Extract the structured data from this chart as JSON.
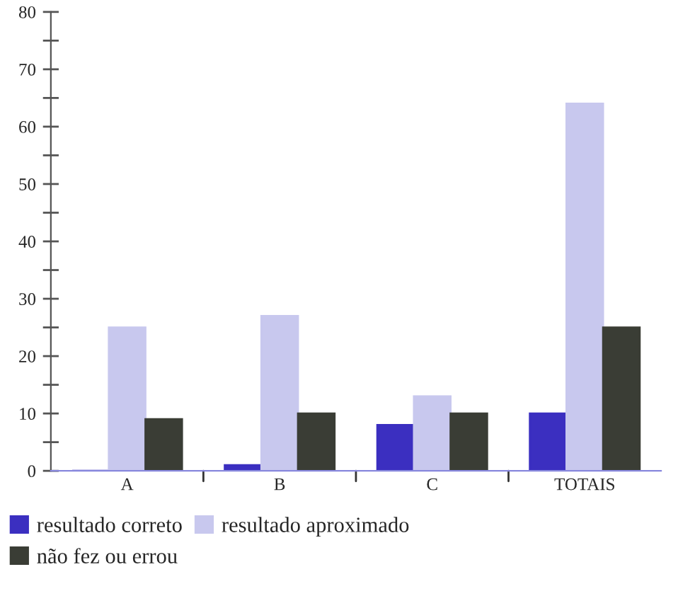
{
  "chart_data": {
    "type": "bar",
    "categories": [
      "A",
      "B",
      "C",
      "TOTAIS"
    ],
    "series": [
      {
        "name": "resultado correto",
        "color": "#3b2fc0",
        "values": [
          0,
          1,
          8,
          10
        ]
      },
      {
        "name": "resultado aproximado",
        "color": "#c8c8ee",
        "values": [
          25,
          27,
          13,
          64
        ]
      },
      {
        "name": "não fez ou errou",
        "color": "#3a3d35",
        "values": [
          9,
          10,
          10,
          25
        ]
      }
    ],
    "ylim": [
      0,
      80
    ],
    "yticks": [
      0,
      {
        "value": 5,
        "label": null
      },
      10,
      {
        "value": 15,
        "label": null
      },
      20,
      {
        "value": 25,
        "label": null
      },
      30,
      {
        "value": 35,
        "label": null
      },
      40,
      {
        "value": 45,
        "label": null
      },
      50,
      {
        "value": 55,
        "label": null
      },
      60,
      {
        "value": 65,
        "label": null
      },
      70,
      {
        "value": 75,
        "label": null
      },
      80
    ],
    "grid": false,
    "legend": "bottom"
  }
}
